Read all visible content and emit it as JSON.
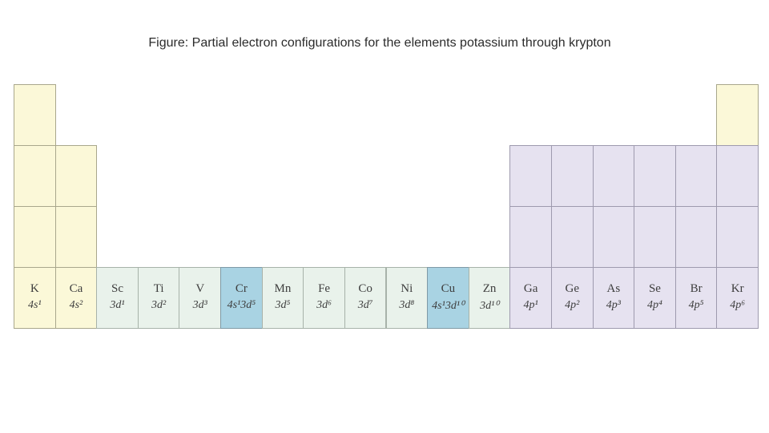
{
  "figure": {
    "caption": "Figure: Partial electron configurations for the elements potassium through krypton"
  },
  "colors": {
    "s_block": "#fbf8d8",
    "d_block": "#e9f2eb",
    "p_block": "#e6e2f0",
    "highlight": "#a9d3e3"
  },
  "elements": [
    {
      "symbol": "K",
      "config": "4s¹",
      "block": "s",
      "highlight": false
    },
    {
      "symbol": "Ca",
      "config": "4s²",
      "block": "s",
      "highlight": false
    },
    {
      "symbol": "Sc",
      "config": "3d¹",
      "block": "d",
      "highlight": false
    },
    {
      "symbol": "Ti",
      "config": "3d²",
      "block": "d",
      "highlight": false
    },
    {
      "symbol": "V",
      "config": "3d³",
      "block": "d",
      "highlight": false
    },
    {
      "symbol": "Cr",
      "config": "4s¹3d⁵",
      "block": "d",
      "highlight": true
    },
    {
      "symbol": "Mn",
      "config": "3d⁵",
      "block": "d",
      "highlight": false
    },
    {
      "symbol": "Fe",
      "config": "3d⁶",
      "block": "d",
      "highlight": false
    },
    {
      "symbol": "Co",
      "config": "3d⁷",
      "block": "d",
      "highlight": false
    },
    {
      "symbol": "Ni",
      "config": "3d⁸",
      "block": "d",
      "highlight": false
    },
    {
      "symbol": "Cu",
      "config": "4s¹3d¹⁰",
      "block": "d",
      "highlight": true
    },
    {
      "symbol": "Zn",
      "config": "3d¹⁰",
      "block": "d",
      "highlight": false
    },
    {
      "symbol": "Ga",
      "config": "4p¹",
      "block": "p",
      "highlight": false
    },
    {
      "symbol": "Ge",
      "config": "4p²",
      "block": "p",
      "highlight": false
    },
    {
      "symbol": "As",
      "config": "4p³",
      "block": "p",
      "highlight": false
    },
    {
      "symbol": "Se",
      "config": "4p⁴",
      "block": "p",
      "highlight": false
    },
    {
      "symbol": "Br",
      "config": "4p⁵",
      "block": "p",
      "highlight": false
    },
    {
      "symbol": "Kr",
      "config": "4p⁶",
      "block": "p",
      "highlight": false
    }
  ]
}
